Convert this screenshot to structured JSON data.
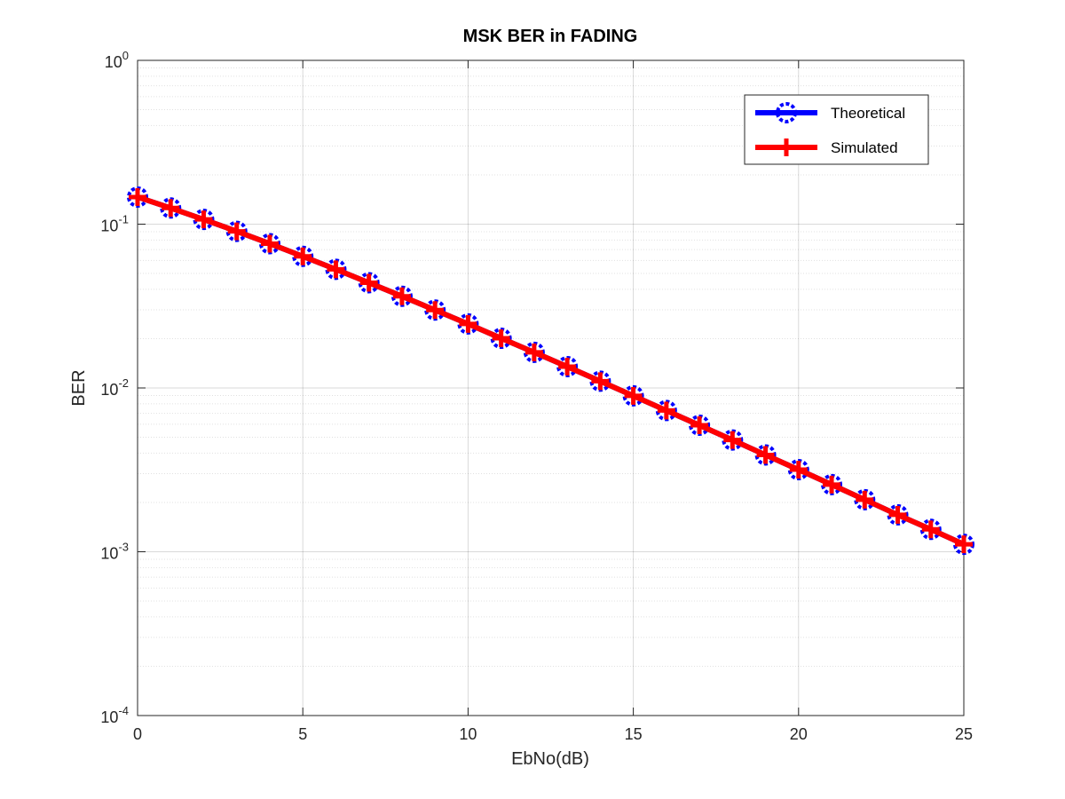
{
  "chart_data": {
    "type": "line",
    "title": "MSK BER in FADING",
    "xlabel": "EbNo(dB)",
    "ylabel": "BER",
    "xlim": [
      0,
      25
    ],
    "ylim": [
      0.0001,
      1
    ],
    "yscale": "log",
    "grid": true,
    "minor_grid": true,
    "legend_position": "top-right",
    "x_ticks": [
      0,
      5,
      10,
      15,
      20,
      25
    ],
    "x_tick_labels": [
      "0",
      "5",
      "10",
      "15",
      "20",
      "25"
    ],
    "y_ticks": [
      {
        "value": 1,
        "base": "10",
        "exp": "0"
      },
      {
        "value": 0.1,
        "base": "10",
        "exp": "-1"
      },
      {
        "value": 0.01,
        "base": "10",
        "exp": "-2"
      },
      {
        "value": 0.001,
        "base": "10",
        "exp": "-3"
      },
      {
        "value": 0.0001,
        "base": "10",
        "exp": "-4"
      }
    ],
    "x": [
      0,
      1,
      2,
      3,
      4,
      5,
      6,
      7,
      8,
      9,
      10,
      11,
      12,
      13,
      14,
      15,
      16,
      17,
      18,
      19,
      20,
      21,
      22,
      23,
      24,
      25
    ],
    "series": [
      {
        "name": "Theoretical",
        "color": "#0000ff",
        "marker": "circle",
        "values": [
          0.1464,
          0.1255,
          0.1069,
          0.0904,
          0.076,
          0.0636,
          0.053,
          0.0439,
          0.0363,
          0.0299,
          0.0246,
          0.0201,
          0.0165,
          0.0135,
          0.011,
          0.00895,
          0.00728,
          0.00592,
          0.00481,
          0.0039,
          0.00317,
          0.00257,
          0.00208,
          0.00168,
          0.00137,
          0.00111
        ]
      },
      {
        "name": "Simulated",
        "color": "#ff0000",
        "marker": "plus",
        "values": [
          0.1464,
          0.1255,
          0.1069,
          0.0904,
          0.076,
          0.0636,
          0.053,
          0.0439,
          0.0363,
          0.0299,
          0.0246,
          0.0201,
          0.0165,
          0.0135,
          0.011,
          0.00895,
          0.00728,
          0.00592,
          0.00481,
          0.0039,
          0.00317,
          0.00257,
          0.00208,
          0.00168,
          0.00137,
          0.00111
        ]
      }
    ]
  }
}
